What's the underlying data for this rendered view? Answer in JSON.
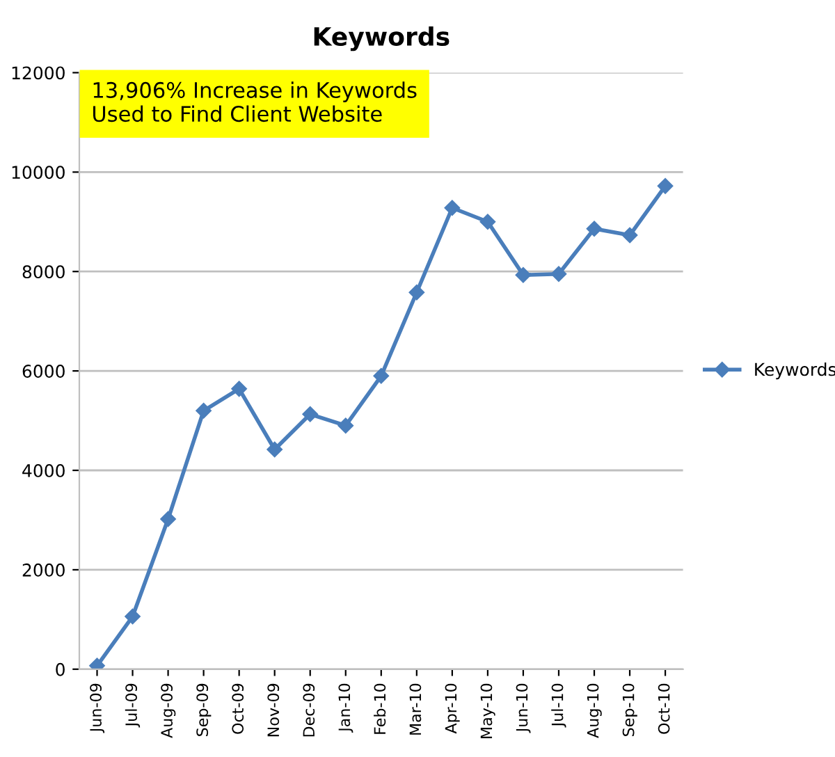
{
  "chart_data": {
    "type": "line",
    "title": "Keywords",
    "categories": [
      "Jun-09",
      "Jul-09",
      "Aug-09",
      "Sep-09",
      "Oct-09",
      "Nov-09",
      "Dec-09",
      "Jan-10",
      "Feb-10",
      "Mar-10",
      "Apr-10",
      "May-10",
      "Jun-10",
      "Jul-10",
      "Aug-10",
      "Sep-10",
      "Oct-10"
    ],
    "series": [
      {
        "name": "Keywords",
        "color": "#4a7ebb",
        "values": [
          70,
          1060,
          3020,
          5200,
          5640,
          4420,
          5130,
          4900,
          5900,
          7580,
          9280,
          9000,
          7930,
          7950,
          8860,
          8730,
          9720
        ]
      }
    ],
    "ylim": [
      0,
      12000
    ],
    "yticks": [
      0,
      2000,
      4000,
      6000,
      8000,
      10000,
      12000
    ],
    "grid": "y",
    "legend": "right",
    "marker": "diamond",
    "line_style": "solid",
    "annotations": [
      "13,906% Increase in Keywords\nUsed to Find Client Website"
    ]
  }
}
